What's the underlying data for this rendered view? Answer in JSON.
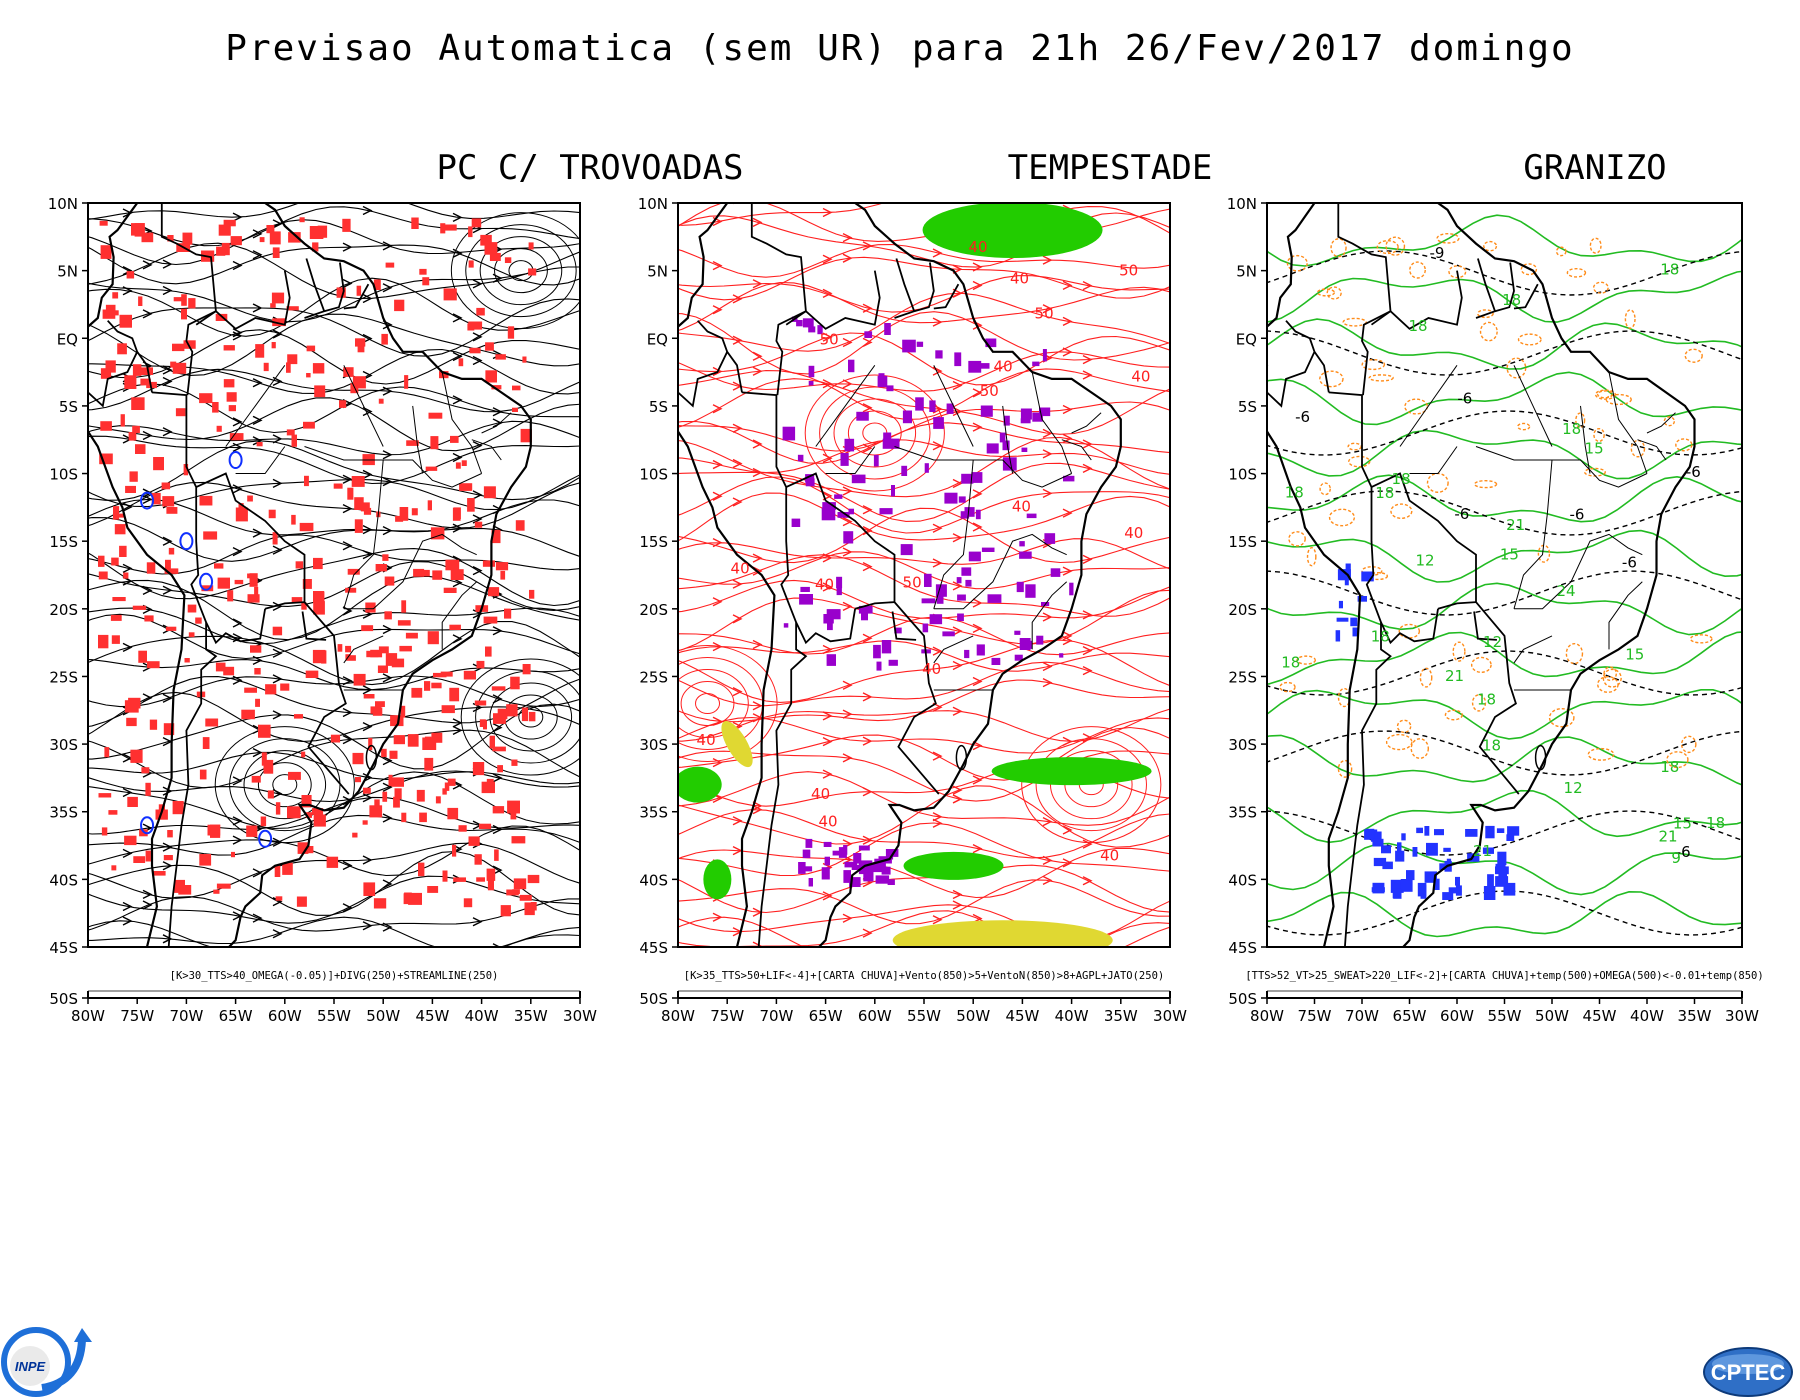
{
  "title": "Previsao Automatica (sem UR) para 21h 26/Fev/2017 domingo",
  "lat_labels": [
    "10N",
    "5N",
    "EQ",
    "5S",
    "10S",
    "15S",
    "20S",
    "25S",
    "30S",
    "35S",
    "40S",
    "45S",
    "50S"
  ],
  "lon_labels": [
    "80W",
    "75W",
    "70W",
    "65W",
    "60W",
    "55W",
    "50W",
    "45W",
    "40W",
    "35W",
    "30W"
  ],
  "panels": [
    {
      "title": "PC C/ TROVOADAS",
      "caption": "[K>30_TTS>40_OMEGA(-0.05)]+DIVG(250)+STREAMLINE(250)",
      "field_color": "#ff3030",
      "line_color": "#000000",
      "accent_color": "#1030ff"
    },
    {
      "title": "TEMPESTADE",
      "caption": "[K>35_TTS>50+LIF<-4]+[CARTA CHUVA]+Vento(850)>5+VentoN(850)>8+AGPL+JATO(250)",
      "field_color": "#9900cc",
      "line_color": "#ff2020",
      "accent_color": "#22cc00",
      "contour_labels": [
        "40",
        "50",
        "40",
        "50",
        "40",
        "40",
        "50",
        "40",
        "50",
        "40",
        "40",
        "40",
        "50",
        "40",
        "40",
        "40",
        "40",
        "40"
      ]
    },
    {
      "title": "GRANIZO",
      "caption": "[TTS>52_VT>25_SWEAT>220_LIF<-2]+[CARTA CHUVA]+temp(500)+OMEGA(500)<-0.01+temp(850)",
      "field_color": "#2233ff",
      "line_color": "#22bb22",
      "accent_color": "#ff8c1a",
      "contour_labels": [
        "18",
        "18",
        "-6",
        "-6",
        "-6",
        "18",
        "18",
        "18",
        "-6",
        "18",
        "21",
        "-6",
        "18",
        "21",
        "18",
        "-6",
        "18",
        "18",
        "21",
        "21",
        "18",
        "18",
        "-6",
        "12",
        "15",
        "15",
        "24",
        "18",
        "12",
        "-9",
        "15",
        "9",
        "15",
        "12"
      ]
    }
  ],
  "logos": {
    "left": "INPE",
    "right": "CPTEC"
  }
}
